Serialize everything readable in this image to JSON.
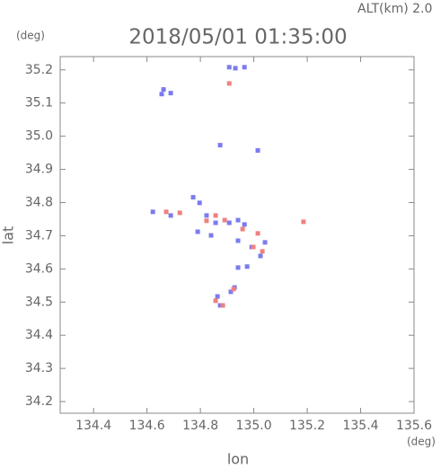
{
  "chart_data": {
    "type": "scatter",
    "title": "2018/05/01 01:35:00",
    "subtitle": "ALT(km) 2.0",
    "x_label": "lon",
    "y_label": "lat",
    "x_unit": "(deg)",
    "y_unit": "(deg)",
    "xlim": [
      134.275,
      135.6
    ],
    "ylim": [
      34.165,
      35.24
    ],
    "xticks": [
      134.4,
      134.6,
      134.8,
      {
        "value": 135,
        "label": "135.0"
      },
      135.2,
      135.4,
      135.6
    ],
    "yticks": [
      34.2,
      34.3,
      34.4,
      34.5,
      34.6,
      34.7,
      34.8,
      34.9,
      {
        "value": 35,
        "label": "35.0"
      },
      35.1,
      35.2
    ],
    "series": [
      {
        "color": "#7b7bef",
        "x": [
          134.908,
          134.931,
          134.965,
          134.662,
          134.689,
          134.655,
          134.874,
          135.015,
          134.773,
          134.797,
          134.622,
          134.689,
          134.823,
          134.857,
          134.908,
          134.941,
          134.965,
          134.79,
          134.84,
          134.941,
          134.992,
          135.042,
          135.025,
          134.975,
          134.941,
          134.864,
          134.914,
          134.928,
          134.874
        ],
        "values": [
          35.208,
          35.205,
          35.208,
          35.141,
          35.13,
          35.127,
          34.973,
          34.957,
          34.816,
          34.799,
          34.772,
          34.761,
          34.761,
          34.739,
          34.739,
          34.747,
          34.734,
          34.712,
          34.701,
          34.685,
          34.666,
          34.68,
          34.639,
          34.607,
          34.604,
          34.517,
          34.531,
          34.544,
          34.49
        ]
      },
      {
        "color": "#f08080",
        "x": [
          134.908,
          134.857,
          134.823,
          134.891,
          135.015,
          135.032,
          134.857,
          134.884,
          134.672,
          135.186,
          134.723,
          134.958,
          134.998,
          134.924
        ],
        "values": [
          35.159,
          34.761,
          34.745,
          34.747,
          34.707,
          34.653,
          34.504,
          34.49,
          34.772,
          34.742,
          34.769,
          34.72,
          34.666,
          34.539
        ]
      }
    ]
  }
}
